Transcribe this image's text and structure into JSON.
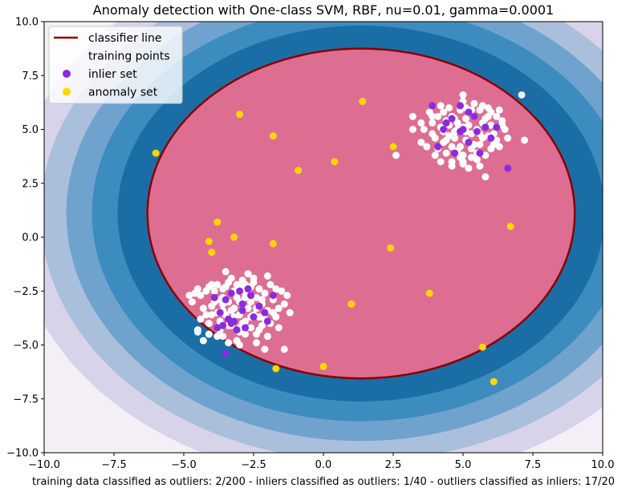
{
  "chart_data": {
    "type": "scatter",
    "title": "Anomaly detection with One-class SVM, RBF, nu=0.01, gamma=0.0001",
    "xlabel": "training data classified as outliers: 2/200 - inliers classified as outliers: 1/40 - outliers classified as inliers: 17/20",
    "ylabel": "",
    "xlim": [
      -10,
      10
    ],
    "ylim": [
      -10,
      10
    ],
    "xticks": [
      -10,
      -7.5,
      -5,
      -2.5,
      0,
      2.5,
      5,
      7.5,
      10
    ],
    "yticks": [
      -10,
      -7.5,
      -5,
      -2.5,
      0,
      2.5,
      5,
      7.5,
      10
    ],
    "xtick_labels": [
      "−10.0",
      "−7.5",
      "−5.0",
      "−2.5",
      "0.0",
      "2.5",
      "5.0",
      "7.5",
      "10.0"
    ],
    "ytick_labels": [
      "−10.0",
      "−7.5",
      "−5.0",
      "−2.5",
      "0.0",
      "2.5",
      "5.0",
      "7.5",
      "10.0"
    ],
    "grid": false,
    "legend_position": "top-left",
    "decision_boundary": {
      "center": [
        1.35,
        1.1
      ],
      "semi_axes": [
        7.65,
        7.65
      ],
      "inside_color": "#dd6e91",
      "line_color": "#8b0000"
    },
    "contour_colors": [
      "#f4eef7",
      "#d7d3e8",
      "#a9bfdc",
      "#6fa3cd",
      "#3d8cc0",
      "#1a6ea5",
      "#034e7b"
    ],
    "contour_scales": [
      1.63,
      1.5,
      1.38,
      1.26,
      1.14,
      1.0
    ],
    "series": [
      {
        "name": "training points",
        "color": "#ffffff",
        "points": [
          [
            4.2,
            5.1
          ],
          [
            4.5,
            4.7
          ],
          [
            4.8,
            5.3
          ],
          [
            5.1,
            4.9
          ],
          [
            5.4,
            5.6
          ],
          [
            5.7,
            4.6
          ],
          [
            6.0,
            5.2
          ],
          [
            4.0,
            4.6
          ],
          [
            4.3,
            5.8
          ],
          [
            4.6,
            4.2
          ],
          [
            4.9,
            5.9
          ],
          [
            5.2,
            4.4
          ],
          [
            5.5,
            5.0
          ],
          [
            5.8,
            5.5
          ],
          [
            6.1,
            4.8
          ],
          [
            3.9,
            5.3
          ],
          [
            4.4,
            3.9
          ],
          [
            4.7,
            5.5
          ],
          [
            5.0,
            3.8
          ],
          [
            5.3,
            5.9
          ],
          [
            5.6,
            4.3
          ],
          [
            5.9,
            6.0
          ],
          [
            6.2,
            4.5
          ],
          [
            6.4,
            5.4
          ],
          [
            3.6,
            5.0
          ],
          [
            3.5,
            4.4
          ],
          [
            4.1,
            4.1
          ],
          [
            4.7,
            4.6
          ],
          [
            5.2,
            5.2
          ],
          [
            5.0,
            6.3
          ],
          [
            4.5,
            6.0
          ],
          [
            5.5,
            3.6
          ],
          [
            6.0,
            4.1
          ],
          [
            6.3,
            5.9
          ],
          [
            3.8,
            5.8
          ],
          [
            3.2,
            5.6
          ],
          [
            3.2,
            5.0
          ],
          [
            4.2,
            6.1
          ],
          [
            5.1,
            6.0
          ],
          [
            4.9,
            4.2
          ],
          [
            5.3,
            4.8
          ],
          [
            5.7,
            5.3
          ],
          [
            6.6,
            4.6
          ],
          [
            4.0,
            3.8
          ],
          [
            4.6,
            3.5
          ],
          [
            5.0,
            3.4
          ],
          [
            5.5,
            3.9
          ],
          [
            4.3,
            4.9
          ],
          [
            4.8,
            5.0
          ],
          [
            5.9,
            4.7
          ],
          [
            5.4,
            6.2
          ],
          [
            4.4,
            5.4
          ],
          [
            5.8,
            3.8
          ],
          [
            3.7,
            4.2
          ],
          [
            6.5,
            5.0
          ],
          [
            5.0,
            6.6
          ],
          [
            4.6,
            3.3
          ],
          [
            5.6,
            3.3
          ],
          [
            2.6,
            3.8
          ],
          [
            7.2,
            4.5
          ],
          [
            5.2,
            3.2
          ],
          [
            5.8,
            2.8
          ],
          [
            4.1,
            5.6
          ],
          [
            6.4,
            5.2
          ],
          [
            4.5,
            5.2
          ],
          [
            5.1,
            4.5
          ],
          [
            4.8,
            4.0
          ],
          [
            5.3,
            4.1
          ],
          [
            5.9,
            5.6
          ],
          [
            3.9,
            4.8
          ],
          [
            6.1,
            4.3
          ],
          [
            4.2,
            3.5
          ],
          [
            6.3,
            4.2
          ],
          [
            5.6,
            5.9
          ],
          [
            4.7,
            4.9
          ],
          [
            5.0,
            5.1
          ],
          [
            5.4,
            4.3
          ],
          [
            4.3,
            4.4
          ],
          [
            6.2,
            5.6
          ],
          [
            5.7,
            6.1
          ],
          [
            5.0,
            3.5
          ],
          [
            3.5,
            5.3
          ],
          [
            4.4,
            4.5
          ],
          [
            5.1,
            5.5
          ],
          [
            5.6,
            4.8
          ],
          [
            6.0,
            5.8
          ],
          [
            4.9,
            3.7
          ],
          [
            4.6,
            5.6
          ],
          [
            5.3,
            3.7
          ],
          [
            3.9,
            5.6
          ],
          [
            -3.0,
            -3.0
          ],
          [
            -2.7,
            -3.3
          ],
          [
            -3.3,
            -2.6
          ],
          [
            -2.4,
            -2.8
          ],
          [
            -3.6,
            -3.4
          ],
          [
            -2.9,
            -2.5
          ],
          [
            -3.2,
            -3.7
          ],
          [
            -2.5,
            -3.6
          ],
          [
            -3.8,
            -2.9
          ],
          [
            -2.2,
            -3.1
          ],
          [
            -3.5,
            -2.3
          ],
          [
            -2.8,
            -3.9
          ],
          [
            -3.1,
            -2.2
          ],
          [
            -2.3,
            -2.4
          ],
          [
            -4.0,
            -3.2
          ],
          [
            -2.0,
            -3.4
          ],
          [
            -3.4,
            -4.1
          ],
          [
            -2.6,
            -4.2
          ],
          [
            -3.9,
            -2.5
          ],
          [
            -2.1,
            -2.6
          ],
          [
            -4.2,
            -3.6
          ],
          [
            -3.0,
            -4.4
          ],
          [
            -2.4,
            -4.5
          ],
          [
            -3.7,
            -3.9
          ],
          [
            -2.9,
            -2.0
          ],
          [
            -1.8,
            -2.9
          ],
          [
            -4.4,
            -2.7
          ],
          [
            -3.3,
            -1.9
          ],
          [
            -2.5,
            -1.9
          ],
          [
            -1.7,
            -3.7
          ],
          [
            -4.1,
            -4.0
          ],
          [
            -3.6,
            -4.6
          ],
          [
            -2.2,
            -4.1
          ],
          [
            -1.5,
            -2.5
          ],
          [
            -4.6,
            -2.6
          ],
          [
            -3.4,
            -3.0
          ],
          [
            -2.8,
            -2.8
          ],
          [
            -3.2,
            -3.3
          ],
          [
            -2.6,
            -3.0
          ],
          [
            -3.0,
            -3.6
          ],
          [
            -3.8,
            -3.5
          ],
          [
            -2.3,
            -3.7
          ],
          [
            -4.3,
            -3.3
          ],
          [
            -1.9,
            -2.2
          ],
          [
            -3.5,
            -1.6
          ],
          [
            -2.7,
            -1.7
          ],
          [
            -4.0,
            -2.2
          ],
          [
            -1.6,
            -4.2
          ],
          [
            -2.0,
            -4.6
          ],
          [
            -3.1,
            -4.8
          ],
          [
            -4.5,
            -4.3
          ],
          [
            -2.9,
            -4.0
          ],
          [
            -3.6,
            -2.8
          ],
          [
            -2.4,
            -3.3
          ],
          [
            -3.3,
            -3.4
          ],
          [
            -1.4,
            -3.1
          ],
          [
            -4.7,
            -3.0
          ],
          [
            -2.1,
            -5.2
          ],
          [
            -3.0,
            -5.0
          ],
          [
            -1.2,
            -3.5
          ],
          [
            -4.1,
            -2.3
          ],
          [
            -2.6,
            -2.3
          ],
          [
            -3.7,
            -4.3
          ],
          [
            -1.9,
            -4.0
          ],
          [
            -3.4,
            -2.1
          ],
          [
            -2.8,
            -4.5
          ],
          [
            -3.9,
            -3.0
          ],
          [
            -2.2,
            -2.9
          ],
          [
            -4.4,
            -3.8
          ],
          [
            -3.2,
            -2.5
          ],
          [
            -2.6,
            -3.7
          ],
          [
            -3.5,
            -3.6
          ],
          [
            -4.2,
            -2.5
          ],
          [
            -1.3,
            -2.7
          ],
          [
            -4.8,
            -2.7
          ],
          [
            -3.0,
            -2.3
          ],
          [
            -2.3,
            -4.3
          ],
          [
            -3.8,
            -4.6
          ],
          [
            -1.6,
            -3.3
          ],
          [
            -4.3,
            -4.8
          ],
          [
            -2.7,
            -2.6
          ],
          [
            -3.6,
            -2.4
          ],
          [
            -2.0,
            -1.8
          ],
          [
            -4.5,
            -2.4
          ],
          [
            -2.4,
            -4.9
          ],
          [
            -1.4,
            -5.2
          ],
          [
            -3.3,
            -4.1
          ],
          [
            -2.9,
            -3.4
          ],
          [
            -3.1,
            -2.8
          ],
          [
            -3.8,
            -2.2
          ],
          [
            -2.5,
            -2.1
          ],
          [
            -4.0,
            -3.6
          ],
          [
            -1.8,
            -3.5
          ],
          [
            -3.4,
            -4.9
          ],
          [
            -2.8,
            -2.2
          ],
          [
            -4.1,
            -4.5
          ],
          [
            -2.1,
            -3.8
          ],
          [
            -3.6,
            -3.1
          ],
          [
            -1.7,
            -2.4
          ],
          [
            -3.0,
            -4.2
          ]
        ]
      },
      {
        "name": "training points",
        "color": "#e8f5f4",
        "points": [
          [
            7.1,
            6.6
          ],
          [
            -4.5,
            -4.4
          ]
        ]
      },
      {
        "name": "inlier set",
        "color": "#8a2be2",
        "points": [
          [
            3.9,
            6.1
          ],
          [
            4.1,
            4.2
          ],
          [
            4.4,
            5.3
          ],
          [
            4.6,
            5.5
          ],
          [
            4.7,
            3.9
          ],
          [
            4.9,
            4.9
          ],
          [
            4.9,
            6.1
          ],
          [
            5.2,
            5.8
          ],
          [
            5.5,
            4.9
          ],
          [
            5.4,
            5.6
          ],
          [
            5.6,
            3.9
          ],
          [
            5.8,
            5.1
          ],
          [
            6.0,
            4.6
          ],
          [
            6.2,
            5.1
          ],
          [
            6.6,
            3.2
          ],
          [
            4.3,
            5.0
          ],
          [
            5.0,
            5.0
          ],
          [
            5.2,
            4.4
          ],
          [
            -3.9,
            -2.8
          ],
          [
            -3.7,
            -3.5
          ],
          [
            -3.6,
            -4.1
          ],
          [
            -3.3,
            -2.6
          ],
          [
            -3.2,
            -3.9
          ],
          [
            -3.1,
            -4.3
          ],
          [
            -3.0,
            -2.5
          ],
          [
            -2.9,
            -3.4
          ],
          [
            -2.8,
            -4.2
          ],
          [
            -2.6,
            -2.7
          ],
          [
            -2.3,
            -3.2
          ],
          [
            -2.1,
            -3.5
          ],
          [
            -1.8,
            -2.7
          ],
          [
            -2.0,
            -3.9
          ],
          [
            -3.4,
            -3.8
          ],
          [
            -3.5,
            -2.9
          ],
          [
            -2.7,
            -2.4
          ],
          [
            -3.8,
            -4.2
          ],
          [
            -3.5,
            -5.4
          ],
          [
            -2.9,
            -3.1
          ],
          [
            -3.3,
            -4.0
          ],
          [
            -2.5,
            -3.7
          ]
        ]
      },
      {
        "name": "anomaly set",
        "color": "#ffd700",
        "points": [
          [
            -6.0,
            3.9
          ],
          [
            -3.0,
            5.7
          ],
          [
            -1.8,
            4.7
          ],
          [
            -0.9,
            3.1
          ],
          [
            0.4,
            3.5
          ],
          [
            1.4,
            6.3
          ],
          [
            2.5,
            4.2
          ],
          [
            -3.8,
            0.7
          ],
          [
            -4.1,
            -0.2
          ],
          [
            -3.2,
            0.0
          ],
          [
            -4.0,
            -0.7
          ],
          [
            -1.8,
            -0.3
          ],
          [
            2.4,
            -0.5
          ],
          [
            6.7,
            0.5
          ],
          [
            1.0,
            -3.1
          ],
          [
            3.8,
            -2.6
          ],
          [
            5.7,
            -5.1
          ],
          [
            6.1,
            -6.7
          ],
          [
            0.0,
            -6.0
          ],
          [
            -1.7,
            -6.1
          ]
        ]
      }
    ],
    "legend": {
      "entries": [
        {
          "label": "classifier line",
          "kind": "line",
          "color": "#8b0000"
        },
        {
          "label": "training points",
          "kind": "marker",
          "color": "#ffffff"
        },
        {
          "label": "inlier set",
          "kind": "marker",
          "color": "#8a2be2"
        },
        {
          "label": "anomaly set",
          "kind": "marker",
          "color": "#ffd700"
        }
      ]
    }
  }
}
